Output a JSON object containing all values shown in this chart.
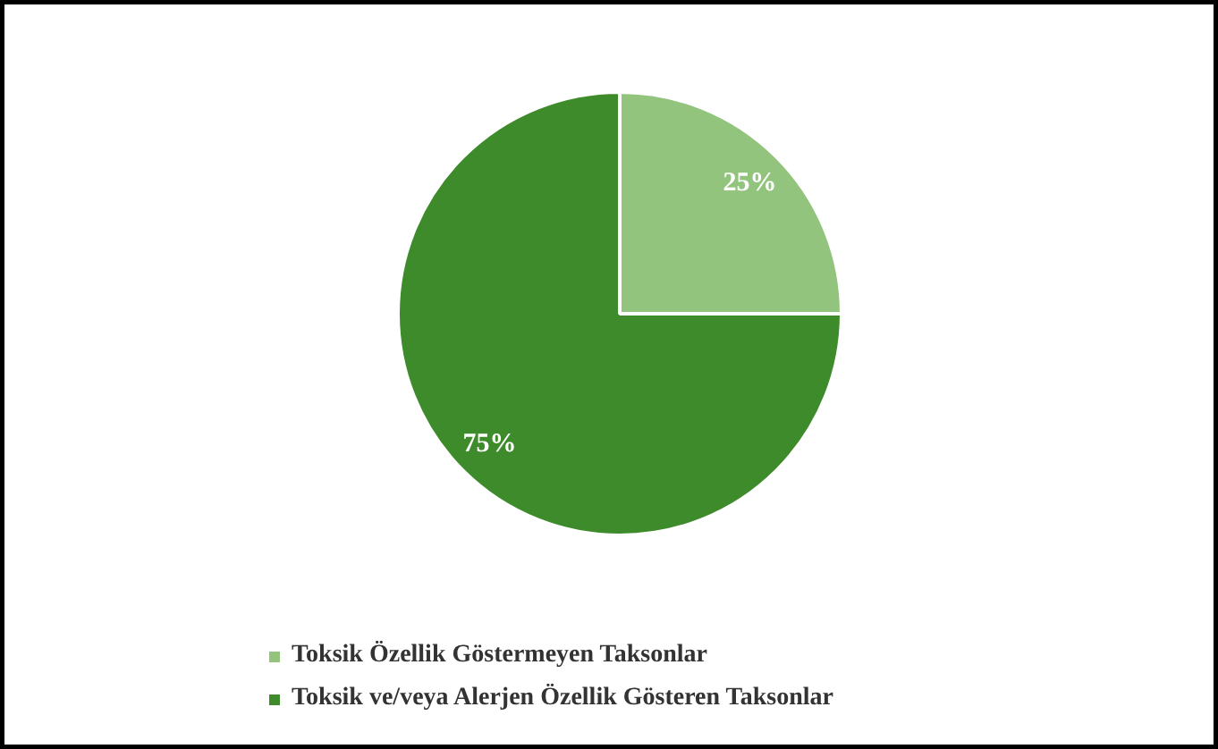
{
  "chart_data": {
    "type": "pie",
    "categories": [
      "Toksik Özellik Göstermeyen Taksonlar",
      "Toksik ve/veya Alerjen Özellik Gösteren Taksonlar"
    ],
    "values": [
      25,
      75
    ],
    "colors": [
      "#93c47d",
      "#3d8b2a"
    ],
    "value_labels": [
      "25%",
      "75%"
    ],
    "legend": "bottom"
  }
}
